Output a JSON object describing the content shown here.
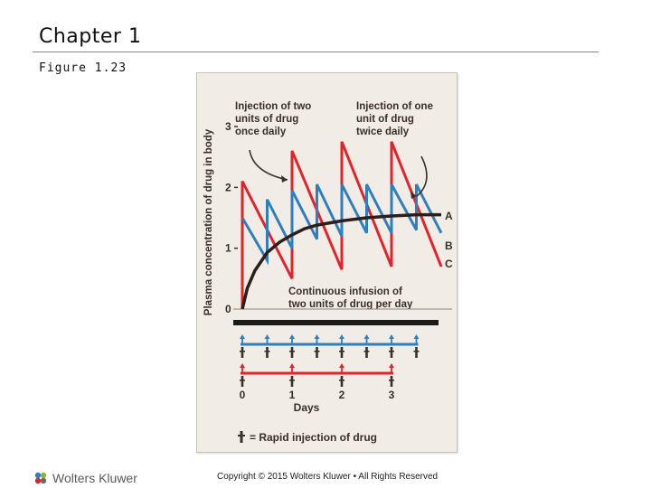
{
  "header": {
    "title": "Chapter 1",
    "subtitle": "Figure 1.23"
  },
  "colors": {
    "regimen_A": "#2a1f1a",
    "regimen_B": "#2f7fbf",
    "regimen_C": "#e0242b",
    "baseline": "#1a1a1a"
  },
  "chart_data": {
    "type": "line",
    "title": "",
    "ylabel": "Plasma concentration of drug in body",
    "xlabel": "Days",
    "ylim": [
      0,
      3
    ],
    "xlim": [
      0,
      4
    ],
    "y_ticks": [
      "0",
      "1",
      "2",
      "3"
    ],
    "x_ticks": [
      "0",
      "1",
      "2",
      "3"
    ],
    "series": [
      {
        "name": "A",
        "description": "Continuous infusion of two units of drug per day",
        "color": "#2a1f1a",
        "points": [
          [
            0,
            0
          ],
          [
            0.1,
            0.34
          ],
          [
            0.25,
            0.63
          ],
          [
            0.5,
            0.93
          ],
          [
            0.75,
            1.1
          ],
          [
            1.0,
            1.22
          ],
          [
            1.25,
            1.32
          ],
          [
            1.5,
            1.38
          ],
          [
            2.0,
            1.45
          ],
          [
            2.5,
            1.5
          ],
          [
            3.0,
            1.53
          ],
          [
            3.5,
            1.55
          ],
          [
            4.0,
            1.55
          ]
        ]
      },
      {
        "name": "B",
        "description": "Injection of one unit of drug twice daily",
        "color": "#2f7fbf",
        "points": [
          [
            0,
            1.5
          ],
          [
            0.5,
            0.8
          ],
          [
            0.5,
            1.8
          ],
          [
            1.0,
            1.0
          ],
          [
            1.0,
            1.95
          ],
          [
            1.5,
            1.15
          ],
          [
            1.5,
            2.05
          ],
          [
            2.0,
            1.2
          ],
          [
            2.0,
            2.05
          ],
          [
            2.5,
            1.25
          ],
          [
            2.5,
            2.05
          ],
          [
            3.0,
            1.25
          ],
          [
            3.0,
            2.05
          ],
          [
            3.5,
            1.3
          ],
          [
            3.5,
            2.05
          ],
          [
            4.0,
            1.25
          ]
        ]
      },
      {
        "name": "C",
        "description": "Injection of two units of drug once daily",
        "color": "#e0242b",
        "points": [
          [
            0,
            0
          ],
          [
            0,
            2.1
          ],
          [
            1.0,
            0.5
          ],
          [
            1.0,
            2.6
          ],
          [
            2.0,
            0.65
          ],
          [
            2.0,
            2.75
          ],
          [
            3.0,
            0.7
          ],
          [
            3.0,
            2.75
          ],
          [
            4.0,
            0.7
          ]
        ]
      }
    ],
    "annotations": [
      {
        "text": "Injection of two units of drug once daily",
        "lines": [
          "Injection of two",
          "units of drug",
          "once daily"
        ]
      },
      {
        "text": "Injection of one unit of drug twice daily",
        "lines": [
          "Injection of one",
          "unit of drug",
          "twice daily"
        ]
      },
      {
        "text": "Continuous infusion of two units of drug per day",
        "lines": [
          "Continuous infusion of",
          "two units of drug per day"
        ]
      }
    ],
    "series_labels": [
      "A",
      "B",
      "C"
    ],
    "dosing_timelines": [
      {
        "name": "B",
        "injection_days": [
          0,
          0.5,
          1.0,
          1.5,
          2.0,
          2.5,
          3.0,
          3.5
        ]
      },
      {
        "name": "C",
        "injection_days": [
          0,
          1.0,
          2.0,
          3.0
        ]
      }
    ],
    "legend": "Rapid injection of drug"
  },
  "footer": {
    "brand": "Wolters Kluwer",
    "copyright": "Copyright © 2015 Wolters Kluwer • All Rights Reserved"
  }
}
